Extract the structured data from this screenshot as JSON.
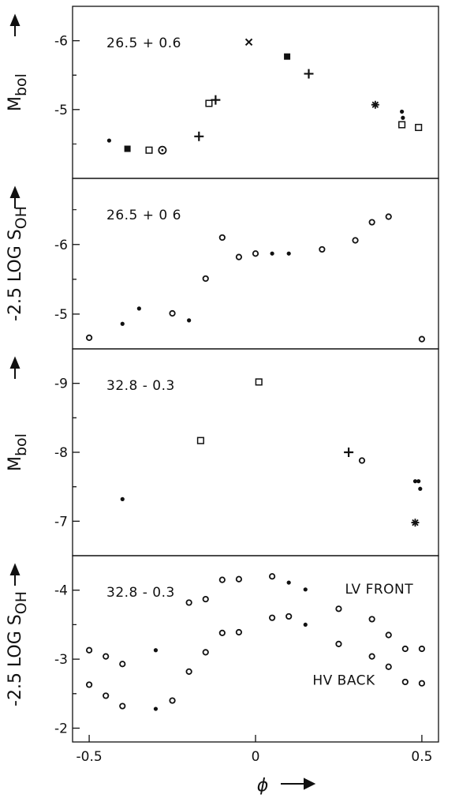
{
  "chart_data": {
    "type": "scatter",
    "x": {
      "label": "ϕ",
      "range": [
        -0.55,
        0.55
      ],
      "ticks": [
        -0.5,
        0,
        0.5
      ],
      "tick_labels": [
        "-0.5",
        "0",
        "0.5"
      ]
    },
    "panels": [
      {
        "label": "26.5 + 0.6",
        "ylabel": "M",
        "ylabel_sub": "bol",
        "ylim": [
          -4.0,
          -6.5
        ],
        "ticks": [
          -5,
          -6
        ],
        "tick_labels": [
          "-5",
          "-6"
        ],
        "series": [
          {
            "marker": "dot",
            "points": [
              [
                -0.44,
                -4.55
              ],
              [
                0.44,
                -4.97
              ],
              [
                0.443,
                -4.88
              ]
            ]
          },
          {
            "marker": "filled-square",
            "points": [
              [
                -0.385,
                -4.43
              ],
              [
                0.095,
                -5.77
              ]
            ]
          },
          {
            "marker": "open-square",
            "points": [
              [
                -0.32,
                -4.41
              ],
              [
                -0.14,
                -5.09
              ],
              [
                0.44,
                -4.78
              ],
              [
                0.49,
                -4.74
              ]
            ]
          },
          {
            "marker": "dotted-circle",
            "points": [
              [
                -0.28,
                -4.41
              ]
            ]
          },
          {
            "marker": "plus",
            "points": [
              [
                -0.17,
                -4.61
              ],
              [
                -0.12,
                -5.14
              ],
              [
                0.16,
                -5.52
              ]
            ]
          },
          {
            "marker": "cross",
            "points": [
              [
                -0.02,
                -5.98
              ]
            ]
          },
          {
            "marker": "asterisk",
            "points": [
              [
                0.36,
                -5.07
              ]
            ]
          }
        ]
      },
      {
        "label": "26.5 + 0 6",
        "ylabel": "-2.5 LOG S",
        "ylabel_sub": "OH",
        "ylim": [
          -4.5,
          -6.95
        ],
        "ticks": [
          -5,
          -6
        ],
        "tick_labels": [
          "-5",
          "-6"
        ],
        "series": [
          {
            "marker": "open-circle",
            "points": [
              [
                -0.5,
                -4.66
              ],
              [
                -0.25,
                -5.01
              ],
              [
                -0.15,
                -5.51
              ],
              [
                -0.1,
                -6.1
              ],
              [
                -0.05,
                -5.82
              ],
              [
                0.0,
                -5.87
              ],
              [
                0.2,
                -5.93
              ],
              [
                0.3,
                -6.06
              ],
              [
                0.35,
                -6.32
              ],
              [
                0.4,
                -6.4
              ],
              [
                0.5,
                -4.64
              ]
            ]
          },
          {
            "marker": "dot",
            "points": [
              [
                -0.4,
                -4.86
              ],
              [
                -0.35,
                -5.08
              ],
              [
                -0.2,
                -4.91
              ],
              [
                0.05,
                -5.87
              ],
              [
                0.1,
                -5.87
              ]
            ]
          }
        ]
      },
      {
        "label": "32.8 - 0.3",
        "ylabel": "M",
        "ylabel_sub": "bol",
        "ylim": [
          -6.5,
          -9.5
        ],
        "ticks": [
          -7,
          -8,
          -9
        ],
        "tick_labels": [
          "-7",
          "-8",
          "-9"
        ],
        "series": [
          {
            "marker": "dot",
            "points": [
              [
                -0.4,
                -7.32
              ],
              [
                0.48,
                -7.58
              ],
              [
                0.49,
                -7.58
              ],
              [
                0.495,
                -7.47
              ]
            ]
          },
          {
            "marker": "open-square",
            "points": [
              [
                -0.165,
                -8.17
              ],
              [
                0.01,
                -9.02
              ]
            ]
          },
          {
            "marker": "plus",
            "points": [
              [
                0.28,
                -8.0
              ]
            ]
          },
          {
            "marker": "open-circle",
            "points": [
              [
                0.32,
                -7.88
              ]
            ]
          },
          {
            "marker": "asterisk",
            "points": [
              [
                0.48,
                -6.98
              ]
            ]
          }
        ]
      },
      {
        "label": "32.8 - 0.3",
        "ylabel": "-2.5 LOG S",
        "ylabel_sub": "OH",
        "ylim": [
          -1.8,
          -4.5
        ],
        "ticks": [
          -2,
          -3,
          -4
        ],
        "tick_labels": [
          "-2",
          "-3",
          "-4"
        ],
        "annotations": [
          {
            "text": "LV FRONT",
            "x": 0.25,
            "y": -4.02
          },
          {
            "text": "HV BACK",
            "x": 0.2,
            "y": -2.7
          }
        ],
        "series": [
          {
            "marker": "open-circle",
            "name": "LV FRONT",
            "points": [
              [
                -0.5,
                -3.13
              ],
              [
                -0.45,
                -3.04
              ],
              [
                -0.4,
                -2.93
              ],
              [
                -0.2,
                -3.82
              ],
              [
                -0.15,
                -3.87
              ],
              [
                -0.1,
                -4.15
              ],
              [
                -0.05,
                -4.16
              ],
              [
                0.05,
                -4.2
              ],
              [
                0.25,
                -3.73
              ],
              [
                0.35,
                -3.58
              ],
              [
                0.4,
                -3.35
              ],
              [
                0.45,
                -3.15
              ],
              [
                0.5,
                -3.15
              ]
            ]
          },
          {
            "marker": "dot",
            "name": "LV FRONT",
            "points": [
              [
                -0.3,
                -3.13
              ],
              [
                0.1,
                -4.11
              ],
              [
                0.15,
                -4.01
              ]
            ]
          },
          {
            "marker": "open-circle",
            "name": "HV BACK",
            "points": [
              [
                -0.5,
                -2.63
              ],
              [
                -0.45,
                -2.47
              ],
              [
                -0.4,
                -2.32
              ],
              [
                -0.25,
                -2.4
              ],
              [
                -0.2,
                -2.82
              ],
              [
                -0.15,
                -3.1
              ],
              [
                -0.1,
                -3.38
              ],
              [
                -0.05,
                -3.39
              ],
              [
                0.05,
                -3.6
              ],
              [
                0.1,
                -3.62
              ],
              [
                0.25,
                -3.22
              ],
              [
                0.35,
                -3.04
              ],
              [
                0.4,
                -2.89
              ],
              [
                0.45,
                -2.67
              ],
              [
                0.5,
                -2.65
              ]
            ]
          },
          {
            "marker": "dot",
            "name": "HV BACK",
            "points": [
              [
                -0.3,
                -2.28
              ],
              [
                0.15,
                -3.5
              ]
            ]
          }
        ]
      }
    ]
  }
}
